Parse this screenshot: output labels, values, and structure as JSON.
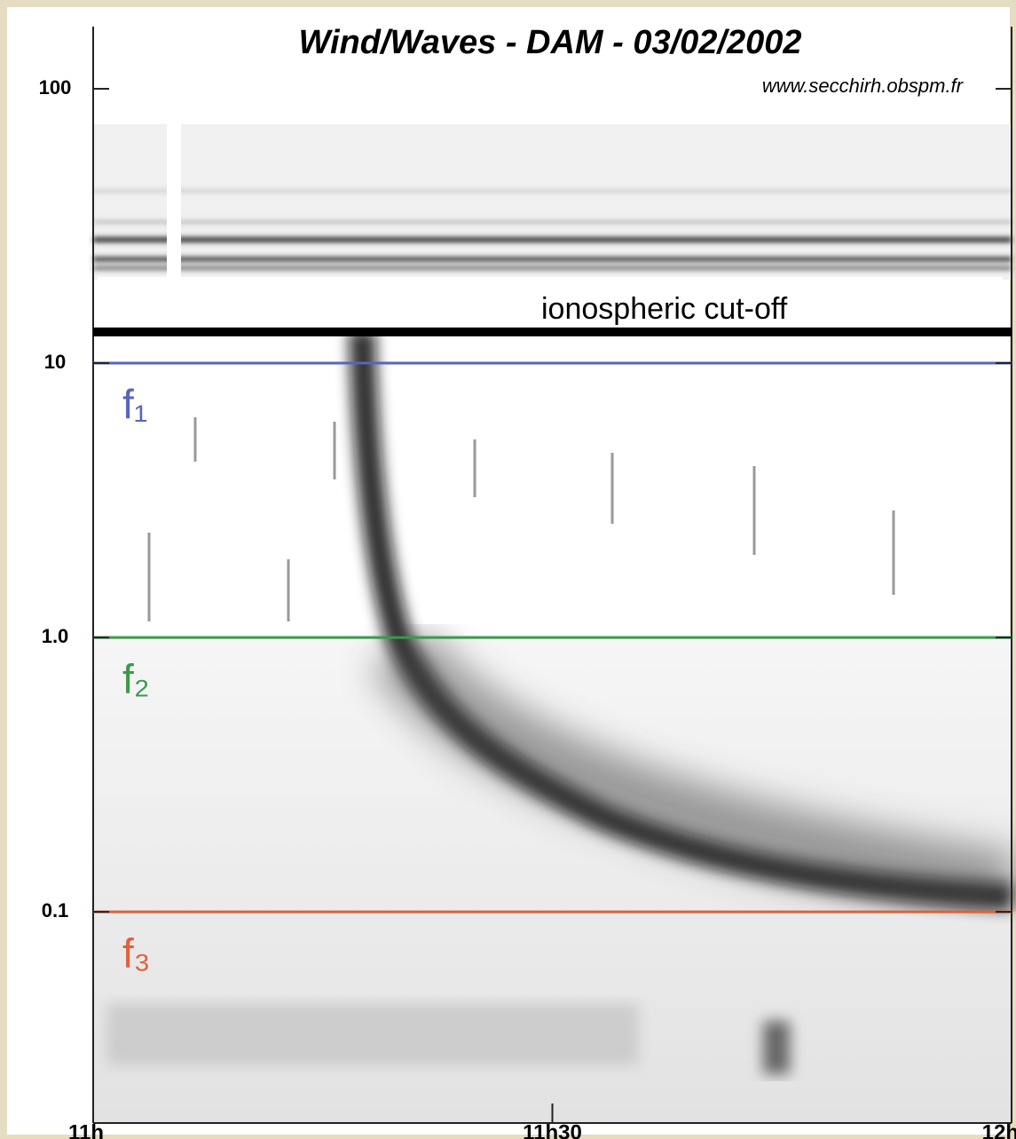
{
  "chart_data": {
    "type": "spectrogram",
    "title": "Wind/Waves - DAM - 03/02/2002",
    "subtitle": "www.secchirh.obspm.fr",
    "log_y": true,
    "ylim": [
      0.017,
      100
    ],
    "yticks": [
      100,
      10,
      {
        "value": 1,
        "label": "1.0"
      },
      0.1
    ],
    "xlim": [
      660,
      720
    ],
    "xticks": [
      {
        "value": 660,
        "label": "11h"
      },
      {
        "value": 690,
        "label": "11h30"
      },
      {
        "value": 720,
        "label": "12h"
      }
    ],
    "lines": [
      {
        "name": "f₁",
        "value": 10,
        "color": "#5566bb"
      },
      {
        "name": "f₂",
        "value": 1,
        "color": "#3a9a4a"
      },
      {
        "name": "f₃",
        "value": 0.1,
        "color": "#e0603a"
      }
    ],
    "annotation": {
      "text": "ionospheric cut-off",
      "value": 13,
      "color": "#000000"
    }
  }
}
